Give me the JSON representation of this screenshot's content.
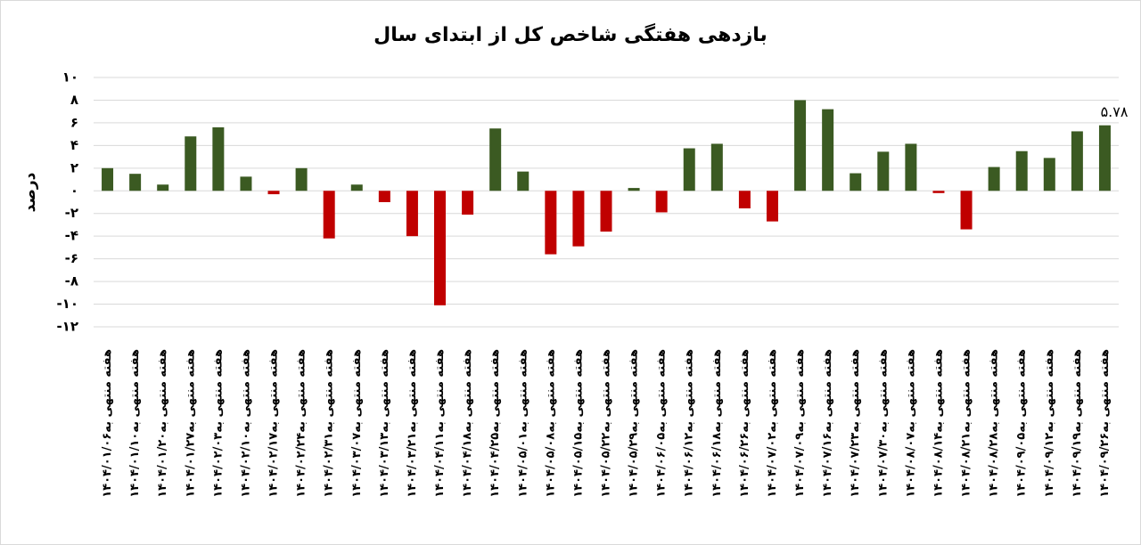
{
  "chart_data": {
    "type": "bar",
    "title": "بازدهی هفتگی شاخص کل از ابتدای سال",
    "y_label": "درصد",
    "categories": [
      "هفته منتهی به۱۴۰۴/۰۱/۰۶",
      "هفته منتهی به۱۴۰۴/۰۱/۱۰",
      "هفته منتهی به۱۴۰۴/۰۱/۲۰",
      "هفته منتهی به۱۴۰۴/۰۱/۲۷",
      "هفته منتهی به۱۴۰۴/۰۲/۰۳",
      "هفته منتهی به۱۴۰۴/۰۲/۱۰",
      "هفته منتهی به۱۴۰۴/۰۲/۱۷",
      "هفته منتهی به۱۴۰۴/۰۲/۲۴",
      "هفته منتهی به۱۴۰۴/۰۲/۳۱",
      "هفته منتهی به۱۴۰۴/۰۳/۰۷",
      "هفته منتهی به۱۴۰۴/۰۳/۱۳",
      "هفته منتهی به۱۴۰۴/۰۳/۲۱",
      "هفته منتهی به۱۴۰۴/۰۴/۱۱",
      "هفته منتهی به۱۴۰۴/۰۴/۱۸",
      "هفته منتهی به۱۴۰۴/۰۴/۲۵",
      "هفته منتهی به۱۴۰۴/۰۵/۰۱",
      "هفته منتهی به۱۴۰۴/۰۵/۰۸",
      "هفته منتهی به۱۴۰۴/۰۵/۱۵",
      "هفته منتهی به۱۴۰۴/۰۵/۲۲",
      "هفته منتهی به۱۴۰۴/۰۵/۲۹",
      "هفته منتهی به۱۴۰۴/۰۶/۰۵",
      "هفته منتهی به۱۴۰۴/۰۶/۱۲",
      "هفته منتهی به۱۴۰۴/۰۶/۱۸",
      "هفته منتهی به۱۴۰۴/۰۶/۲۶",
      "هفته منتهی به۱۴۰۴/۰۷/۰۲",
      "هفته منتهی به۱۴۰۴/۰۷/۰۹",
      "هفته منتهی به۱۴۰۴/۰۷/۱۶",
      "هفته منتهی به۱۴۰۴/۰۷/۲۳",
      "هفته منتهی به۱۴۰۴/۰۷/۳۰",
      "هفته منتهی به۱۴۰۴/۰۸/۰۷",
      "هفته منتهی به۱۴۰۴/۰۸/۱۴",
      "هفته منتهی به۱۴۰۴/۰۸/۲۱",
      "هفته منتهی به۱۴۰۴/۰۸/۲۸",
      "هفته منتهی به۱۴۰۴/۰۹/۰۵",
      "هفته منتهی به۱۴۰۴/۰۹/۱۲",
      "هفته منتهی به۱۴۰۴/۰۹/۱۹",
      "هفته منتهی به۱۴۰۴/۰۹/۲۶"
    ],
    "values": [
      2.0,
      1.5,
      0.55,
      4.8,
      5.6,
      1.25,
      -0.3,
      2.0,
      -4.2,
      0.55,
      -1.0,
      -4.0,
      -10.1,
      -2.1,
      5.5,
      1.7,
      -5.6,
      -4.9,
      -3.6,
      0.25,
      -1.9,
      3.75,
      4.15,
      -1.55,
      -2.7,
      8.0,
      7.2,
      1.55,
      3.45,
      4.15,
      -0.2,
      -3.4,
      2.1,
      3.5,
      2.9,
      5.25,
      5.78
    ],
    "value_labels": [
      null,
      null,
      null,
      null,
      null,
      null,
      null,
      null,
      null,
      null,
      null,
      null,
      null,
      null,
      null,
      null,
      null,
      null,
      null,
      null,
      null,
      null,
      null,
      null,
      null,
      null,
      null,
      null,
      null,
      null,
      null,
      null,
      null,
      null,
      null,
      null,
      "۵.۷۸"
    ],
    "positive_color": "#3b5a22",
    "negative_color": "#c00000",
    "ylim": [
      -12,
      10
    ],
    "yticks": [
      {
        "value": 10,
        "label": "۱۰"
      },
      {
        "value": 8,
        "label": "۸"
      },
      {
        "value": 6,
        "label": "۶"
      },
      {
        "value": 4,
        "label": "۴"
      },
      {
        "value": 2,
        "label": "۲"
      },
      {
        "value": 0,
        "label": "۰"
      },
      {
        "value": -2,
        "label": "-۲"
      },
      {
        "value": -4,
        "label": "-۴"
      },
      {
        "value": -6,
        "label": "-۶"
      },
      {
        "value": -8,
        "label": "-۸"
      },
      {
        "value": -10,
        "label": "-۱۰"
      },
      {
        "value": -12,
        "label": "-۱۲"
      }
    ],
    "grid": true
  }
}
